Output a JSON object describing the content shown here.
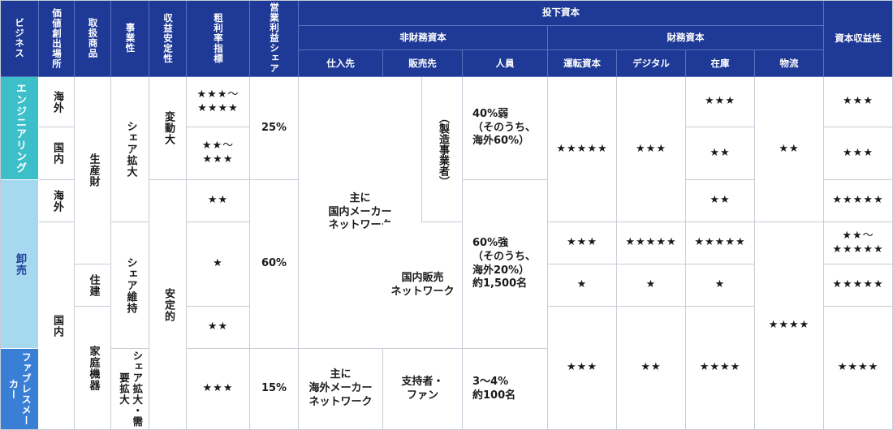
{
  "headers": {
    "business": "ビジネス",
    "value_location": "価値創出場所",
    "products": "取扱商品",
    "business_nature": "事業性",
    "earnings_stability": "収益安定性",
    "gross_margin": "粗利率指標",
    "operating_profit_share": "営業利益シェア",
    "invested_capital": "投下資本",
    "non_financial_capital": "非財務資本",
    "financial_capital": "財務資本",
    "capital_profitability": "資本収益性",
    "suppliers": "仕入先",
    "sales_channels": "販売先",
    "personnel": "人員",
    "working_capital": "運転資本",
    "digital": "デジタル",
    "inventory": "在庫",
    "logistics": "物流"
  },
  "business": {
    "engineering": "エンジニアリング",
    "wholesale": "卸売",
    "fabless": "ファブレスメーカー"
  },
  "business_colors": {
    "engineering": "#3dbfc9",
    "wholesale": "#a6d8f0",
    "fabless": "#3a7fd6"
  },
  "value_location": {
    "overseas_1": "海外",
    "domestic_1": "国内",
    "overseas_2": "海外",
    "domestic_2": "国内"
  },
  "products": {
    "production_goods": "生産財",
    "housing": "住建",
    "home_appliances": "家庭機器"
  },
  "business_nature": {
    "expand": "シェア拡大",
    "maintain": "シェア維持",
    "expand_demand": "シェア拡大・需要拡大"
  },
  "earnings_stability": {
    "volatile": "変動大",
    "stable": "安定的"
  },
  "gross_margin": {
    "r1": "★★★〜\n★★★★",
    "r2": "★★〜\n★★★",
    "r3": "★★",
    "r4": "★",
    "r5": "★★",
    "r6": "★★★"
  },
  "operating_profit_share": {
    "engineering": "25%",
    "wholesale": "60%",
    "fabless": "15%"
  },
  "suppliers": {
    "domestic": "主に\n国内メーカー\nネットワーク",
    "overseas": "主に\n海外メーカー\nネットワーク"
  },
  "sales_channels": {
    "manufacturer": "（製造事業者）",
    "domestic_network": "国内販売\nネットワーク",
    "supporters": "支持者・\nファン"
  },
  "personnel": {
    "engineering": "40%弱\n（そのうち、\n海外60%）",
    "wholesale": "60%強\n（そのうち、\n海外20%）\n約1,500名",
    "fabless": "3〜4%\n約100名"
  },
  "working_capital": {
    "engineering": "★★★★★",
    "wholesale_a": "★★★",
    "wholesale_b": "★",
    "lower": "★★★"
  },
  "digital": {
    "engineering": "★★★",
    "wholesale_a": "★★★★★",
    "wholesale_b": "★",
    "lower": "★★"
  },
  "inventory": {
    "r1": "★★★",
    "r2": "★★",
    "r3": "★★",
    "r4": "★★★★★",
    "r5": "★",
    "lower": "★★★★"
  },
  "logistics": {
    "engineering": "★★",
    "wholesale": "★★★★"
  },
  "capital_profitability": {
    "r1": "★★★",
    "r2": "★★★",
    "r3": "★★★★★",
    "r4": "★★〜\n★★★★★",
    "r5": "★★★★★",
    "lower": "★★★★"
  }
}
